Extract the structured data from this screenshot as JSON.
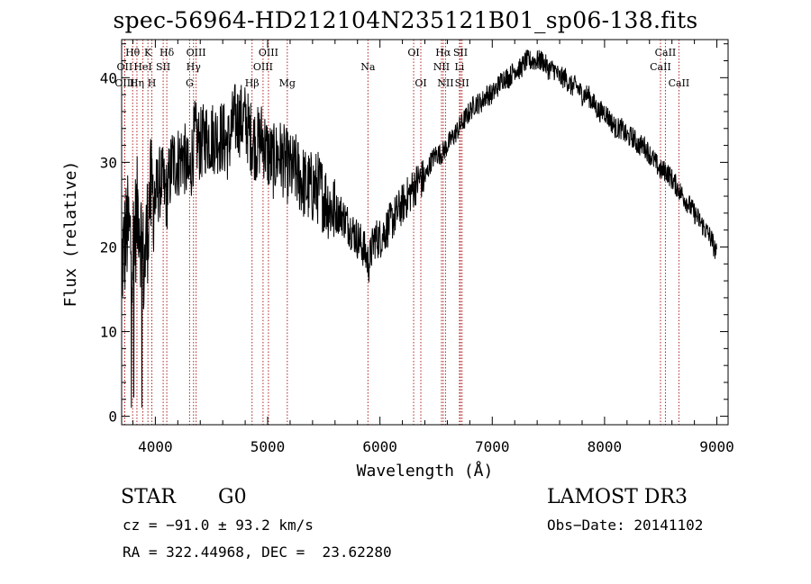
{
  "chart_data": {
    "type": "line",
    "title": "spec-56964-HD212104N235121B01_sp06-138.fits",
    "xlabel": "Wavelength (Å)",
    "ylabel": "Flux (relative)",
    "xlim": [
      3700,
      9100
    ],
    "ylim": [
      -1,
      44.5
    ],
    "x_ticks": [
      4000,
      5000,
      6000,
      7000,
      8000,
      9000
    ],
    "y_ticks": [
      0,
      10,
      20,
      30,
      40
    ],
    "series": [
      {
        "name": "flux",
        "x": [
          3700,
          3750,
          3800,
          3850,
          3900,
          3950,
          4000,
          4050,
          4100,
          4150,
          4200,
          4250,
          4300,
          4350,
          4400,
          4450,
          4500,
          4550,
          4600,
          4650,
          4700,
          4750,
          4800,
          4850,
          4900,
          4950,
          5000,
          5050,
          5100,
          5150,
          5200,
          5250,
          5300,
          5350,
          5400,
          5450,
          5500,
          5550,
          5600,
          5650,
          5700,
          5750,
          5800,
          5850,
          5900,
          5950,
          6000,
          6050,
          6100,
          6150,
          6200,
          6250,
          6300,
          6350,
          6400,
          6450,
          6500,
          6550,
          6600,
          6650,
          6700,
          6750,
          6800,
          6850,
          6900,
          6950,
          7000,
          7050,
          7100,
          7150,
          7200,
          7250,
          7300,
          7350,
          7400,
          7450,
          7500,
          7550,
          7600,
          7650,
          7700,
          7750,
          7800,
          7850,
          7900,
          7950,
          8000,
          8050,
          8100,
          8150,
          8200,
          8250,
          8300,
          8350,
          8400,
          8450,
          8500,
          8550,
          8600,
          8650,
          8700,
          8750,
          8800,
          8850,
          8900,
          8950,
          9000
        ],
        "y": [
          18,
          22,
          20,
          25,
          17,
          26,
          26,
          28,
          26,
          30,
          30,
          31,
          28,
          33,
          32,
          33,
          33,
          33,
          33,
          32,
          35,
          35,
          35,
          33,
          32,
          33,
          31,
          30,
          31,
          30,
          29,
          29,
          28,
          27,
          27,
          27,
          26,
          25,
          24,
          24,
          23,
          22,
          21,
          20,
          18,
          21,
          21,
          22,
          23,
          24,
          25,
          26,
          27,
          28,
          28,
          30,
          31,
          31,
          32,
          33,
          34,
          35,
          36,
          37,
          37,
          38,
          38,
          39,
          40,
          40,
          41,
          41,
          42,
          42,
          42,
          42,
          41,
          41,
          40,
          40,
          39,
          39,
          38,
          38,
          37,
          36,
          36,
          35,
          34,
          34,
          33,
          33,
          32,
          32,
          31,
          30,
          29,
          29,
          28,
          27,
          26,
          25,
          24,
          23,
          22,
          21,
          19
        ]
      }
    ],
    "line_markers": [
      {
        "label": "Hθ",
        "x": 3798,
        "row": 1
      },
      {
        "label": "OII",
        "x": 3727,
        "row": 2
      },
      {
        "label": "OIII",
        "x": 3727,
        "row": 3
      },
      {
        "label": "K",
        "x": 3934,
        "row": 1
      },
      {
        "label": "HeI",
        "x": 3889,
        "row": 2
      },
      {
        "label": "Hη",
        "x": 3836,
        "row": 3
      },
      {
        "label": "H",
        "x": 3969,
        "row": 3
      },
      {
        "label": "Hδ",
        "x": 4102,
        "row": 1
      },
      {
        "label": "SII",
        "x": 4070,
        "row": 2
      },
      {
        "label": "OIII",
        "x": 4363,
        "row": 1
      },
      {
        "label": "Hγ",
        "x": 4340,
        "row": 2
      },
      {
        "label": "G",
        "x": 4305,
        "row": 3
      },
      {
        "label": "Hβ",
        "x": 4861,
        "row": 3
      },
      {
        "label": "OIII",
        "x": 5007,
        "row": 1
      },
      {
        "label": "OIII",
        "x": 4959,
        "row": 2
      },
      {
        "label": "Mg",
        "x": 5175,
        "row": 3
      },
      {
        "label": "Na",
        "x": 5893,
        "row": 2
      },
      {
        "label": "OI",
        "x": 6300,
        "row": 1
      },
      {
        "label": "OI",
        "x": 6364,
        "row": 3
      },
      {
        "label": "Hα",
        "x": 6563,
        "row": 1
      },
      {
        "label": "SII",
        "x": 6717,
        "row": 1
      },
      {
        "label": "NII",
        "x": 6548,
        "row": 2
      },
      {
        "label": "Li",
        "x": 6708,
        "row": 2
      },
      {
        "label": "NII",
        "x": 6584,
        "row": 3
      },
      {
        "label": "SII",
        "x": 6731,
        "row": 3
      },
      {
        "label": "CaII",
        "x": 8542,
        "row": 1
      },
      {
        "label": "CaII",
        "x": 8498,
        "row": 2
      },
      {
        "label": "CaII",
        "x": 8662,
        "row": 3
      }
    ]
  },
  "info": {
    "class": "STAR",
    "subclass": "G0",
    "survey": "LAMOST DR3",
    "cz": "cz = −91.0 ± 93.2 km/s",
    "obs_date": "Obs−Date: 20141102",
    "coords": "RA = 322.44968, DEC =  23.62280"
  }
}
